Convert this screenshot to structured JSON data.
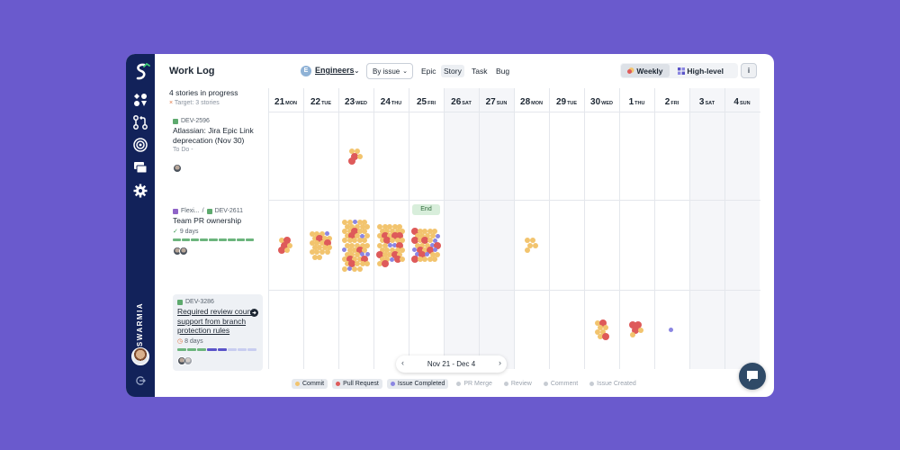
{
  "app": {
    "title": "Work Log",
    "brand": "SWARMIA"
  },
  "sidebar": {
    "icons": [
      "logo-icon",
      "dashboard-icon",
      "pull-requests-icon",
      "goals-icon",
      "work-log-icon",
      "settings-icon"
    ]
  },
  "toolbar": {
    "team_initial": "E",
    "team": "Engineers",
    "groupby": "By issue",
    "types": [
      "Epic",
      "Story",
      "Task",
      "Bug"
    ],
    "active_type": "Story",
    "view_weekly": "Weekly",
    "view_highlevel": "High-level",
    "info": "i"
  },
  "summary": {
    "title": "4 stories in progress",
    "target": "Target: 3 stories"
  },
  "stories": [
    {
      "key": "DEV-2596",
      "title": "Atlassian: Jira Epic Link deprecation (Nov 30)",
      "status": "To Do -"
    },
    {
      "parent": "Flexi...",
      "key": "DEV-2611",
      "title": "Team PR ownership",
      "days": "9 days"
    },
    {
      "key": "DEV-3286",
      "title": "Required review count support from branch protection rules",
      "days": "8 days"
    }
  ],
  "days": [
    {
      "num": "21",
      "dow": "MON"
    },
    {
      "num": "22",
      "dow": "TUE"
    },
    {
      "num": "23",
      "dow": "WED"
    },
    {
      "num": "24",
      "dow": "THU"
    },
    {
      "num": "25",
      "dow": "FRI"
    },
    {
      "num": "26",
      "dow": "SAT"
    },
    {
      "num": "27",
      "dow": "SUN"
    },
    {
      "num": "28",
      "dow": "MON"
    },
    {
      "num": "29",
      "dow": "TUE"
    },
    {
      "num": "30",
      "dow": "WED"
    },
    {
      "num": "1",
      "dow": "THU"
    },
    {
      "num": "2",
      "dow": "FRI"
    },
    {
      "num": "3",
      "dow": "SAT"
    },
    {
      "num": "4",
      "dow": "SUN"
    }
  ],
  "end_label": "End",
  "pager": {
    "range": "Nov 21 - Dec 4",
    "prev": "‹",
    "next": "›"
  },
  "legend": [
    {
      "label": "Commit",
      "color": "#f2c46e",
      "active": true
    },
    {
      "label": "Pull Request",
      "color": "#de5a5a",
      "active": true
    },
    {
      "label": "Issue Completed",
      "color": "#8b86e2",
      "active": true
    },
    {
      "label": "PR Merge",
      "color": "#c7ccd3",
      "active": false
    },
    {
      "label": "Review",
      "color": "#c7ccd3",
      "active": false
    },
    {
      "label": "Comment",
      "color": "#c7ccd3",
      "active": false
    },
    {
      "label": "Issue Created",
      "color": "#c7ccd3",
      "active": false
    }
  ],
  "colors": {
    "commit": "#f2c46e",
    "pull_request": "#de5a5a",
    "issue_completed": "#8b86e2",
    "background": "#6a5acd",
    "sidebar": "#12225a"
  },
  "activity": [
    {
      "story": 0,
      "day": 2,
      "commit": 3,
      "pull_request": 2,
      "issue_completed": 0
    },
    {
      "story": 1,
      "day": 0,
      "commit": 3,
      "pull_request": 3,
      "issue_completed": 0
    },
    {
      "story": 1,
      "day": 1,
      "commit": 19,
      "pull_request": 2,
      "issue_completed": 1
    },
    {
      "story": 1,
      "day": 2,
      "commit": 42,
      "pull_request": 6,
      "issue_completed": 6
    },
    {
      "story": 1,
      "day": 3,
      "commit": 30,
      "pull_request": 9,
      "issue_completed": 3
    },
    {
      "story": 1,
      "day": 4,
      "commit": 20,
      "pull_request": 8,
      "issue_completed": 7
    },
    {
      "story": 1,
      "day": 7,
      "commit": 5,
      "pull_request": 0,
      "issue_completed": 0
    },
    {
      "story": 2,
      "day": 9,
      "commit": 6,
      "pull_request": 2,
      "issue_completed": 0
    },
    {
      "story": 2,
      "day": 10,
      "commit": 2,
      "pull_request": 3,
      "issue_completed": 0
    },
    {
      "story": 2,
      "day": 11,
      "commit": 0,
      "pull_request": 0,
      "issue_completed": 1
    }
  ]
}
